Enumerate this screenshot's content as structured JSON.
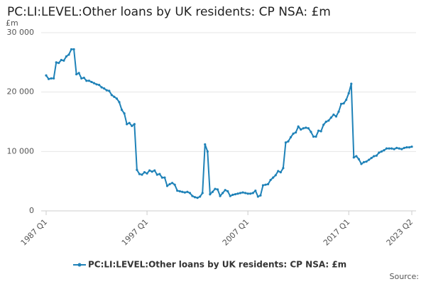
{
  "chart_data": {
    "type": "line",
    "title": "PC:LI:LEVEL:Other loans by UK residents: CP NSA: £m",
    "y_unit": "£m",
    "source": "Source:",
    "categories": [
      "1987 Q1",
      null,
      null,
      null,
      null,
      null,
      null,
      null,
      null,
      null,
      null,
      null,
      null,
      null,
      null,
      null,
      null,
      null,
      null,
      null,
      null,
      null,
      null,
      null,
      null,
      null,
      null,
      null,
      null,
      null,
      null,
      null,
      null,
      null,
      null,
      null,
      null,
      null,
      null,
      null,
      "1997 Q1",
      null,
      null,
      null,
      null,
      null,
      null,
      null,
      null,
      null,
      null,
      null,
      null,
      null,
      null,
      null,
      null,
      null,
      null,
      null,
      null,
      null,
      null,
      null,
      null,
      null,
      null,
      null,
      null,
      null,
      null,
      null,
      null,
      null,
      null,
      null,
      null,
      null,
      null,
      null,
      "2007 Q1",
      null,
      null,
      null,
      null,
      null,
      null,
      null,
      null,
      null,
      null,
      null,
      null,
      null,
      null,
      null,
      null,
      null,
      null,
      null,
      null,
      null,
      null,
      null,
      null,
      null,
      null,
      null,
      null,
      null,
      null,
      null,
      null,
      null,
      null,
      null,
      null,
      null,
      null,
      null,
      "2017 Q1",
      null,
      null,
      null,
      null,
      null,
      null,
      null,
      null,
      null,
      null,
      null,
      null,
      null,
      null,
      null,
      null,
      null,
      null,
      null,
      null,
      null,
      null,
      null,
      null,
      "2023 Q2"
    ],
    "series": [
      {
        "name": "PC:LI:LEVEL:Other loans by UK residents: CP NSA: £m",
        "color": "#1f82b8",
        "values": [
          22800,
          22200,
          22300,
          22300,
          25000,
          24900,
          25400,
          25300,
          26000,
          26300,
          27200,
          27200,
          23000,
          23200,
          22300,
          22400,
          21900,
          21900,
          21700,
          21500,
          21300,
          21200,
          20800,
          20600,
          20300,
          20200,
          19500,
          19200,
          18900,
          18300,
          17000,
          16400,
          14600,
          14800,
          14300,
          14600,
          6900,
          6200,
          6100,
          6500,
          6300,
          6800,
          6600,
          6800,
          6100,
          6200,
          5600,
          5600,
          4200,
          4500,
          4700,
          4400,
          3400,
          3300,
          3200,
          3100,
          3200,
          3000,
          2500,
          2300,
          2200,
          2400,
          3000,
          11200,
          10000,
          2800,
          3200,
          3700,
          3600,
          2500,
          3000,
          3500,
          3300,
          2500,
          2700,
          2800,
          2900,
          3000,
          3100,
          3000,
          2900,
          2900,
          3000,
          3400,
          2400,
          2600,
          4300,
          4400,
          4500,
          5200,
          5600,
          6000,
          6700,
          6500,
          7200,
          11500,
          11700,
          12400,
          13000,
          13200,
          14200,
          13700,
          13900,
          14000,
          13900,
          13300,
          12500,
          12500,
          13500,
          13400,
          14500,
          15000,
          15200,
          15700,
          16200,
          15900,
          16700,
          18000,
          18100,
          18700,
          19800,
          21400,
          9000,
          9200,
          8700,
          7900,
          8200,
          8300,
          8600,
          8900,
          9200,
          9300,
          9800,
          10000,
          10200,
          10500,
          10500,
          10500,
          10400,
          10600,
          10500,
          10400,
          10600,
          10700,
          10700,
          10800
        ]
      }
    ],
    "ylim": [
      0,
      30000
    ],
    "yticks": [
      0,
      {
        "value": 10000,
        "label": "10 000"
      },
      {
        "value": 20000,
        "label": "20 000"
      },
      {
        "value": 30000,
        "label": "30 000"
      }
    ],
    "grid": true,
    "legend": "bottom"
  }
}
